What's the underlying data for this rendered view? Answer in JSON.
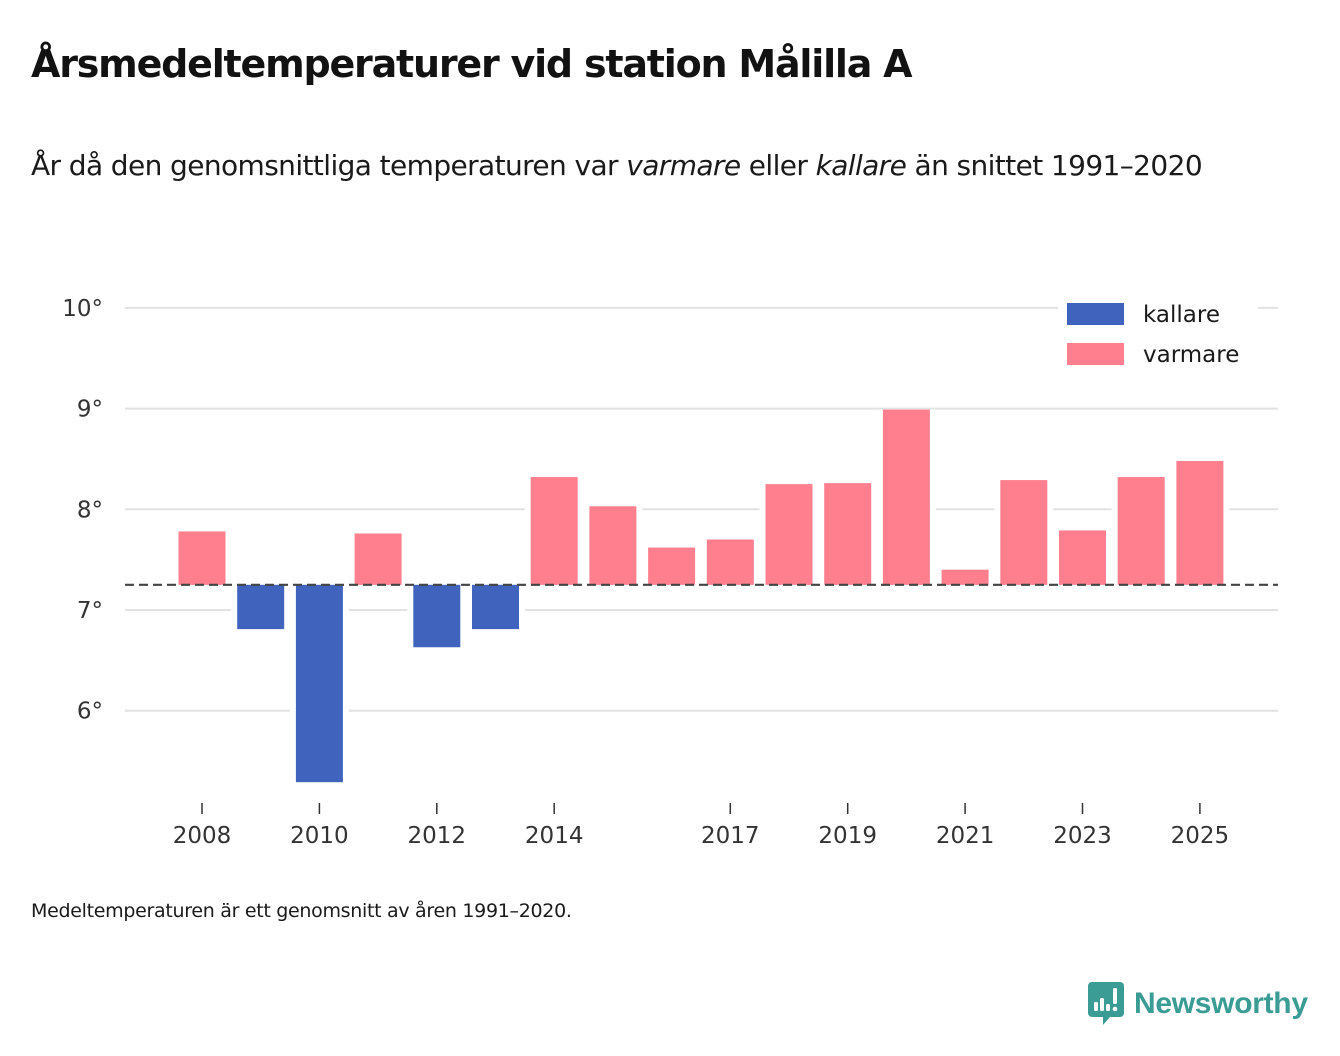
{
  "header": {
    "title": "Årsmedeltemperaturer vid station Målilla A",
    "subtitle_parts": {
      "p1": "År då den genomsnittliga temperaturen var ",
      "em1": "varmare",
      "p2": " eller ",
      "em2": "kallare",
      "p3": " än snittet 1991–2020"
    }
  },
  "footnote": "Medeltemperaturen är ett genomsnitt av åren 1991–2020.",
  "brand": {
    "name": "Newsworthy",
    "icon": "newsworthy-logo-icon",
    "color": "#3a9c94"
  },
  "chart_data": {
    "type": "bar",
    "title": "Årsmedeltemperaturer vid station Målilla A",
    "subtitle": "År då den genomsnittliga temperaturen var varmare eller kallare än snittet 1991–2020",
    "xlabel": "",
    "ylabel": "",
    "baseline": 7.25,
    "baseline_style": "dashed",
    "ylim": [
      5.0,
      10.0
    ],
    "yticks": [
      6,
      7,
      8,
      9,
      10
    ],
    "ytick_labels": [
      "6°",
      "7°",
      "8°",
      "9°",
      "10°"
    ],
    "grid": true,
    "categories": [
      2008,
      2009,
      2010,
      2011,
      2012,
      2013,
      2014,
      2015,
      2016,
      2017,
      2018,
      2019,
      2020,
      2021,
      2022,
      2023,
      2024,
      2025
    ],
    "values": [
      7.78,
      6.81,
      5.29,
      7.76,
      6.63,
      6.81,
      8.32,
      8.03,
      7.62,
      7.7,
      8.25,
      8.26,
      8.99,
      7.4,
      8.29,
      7.79,
      8.32,
      8.48
    ],
    "xticks": [
      2008,
      2010,
      2012,
      2014,
      2017,
      2019,
      2021,
      2023,
      2025
    ],
    "xtick_labels": [
      "2008",
      "2010",
      "2012",
      "2014",
      "2017",
      "2019",
      "2021",
      "2023",
      "2025"
    ],
    "series_colors": {
      "kallare": "#4063bd",
      "varmare": "#ff7f8e"
    },
    "legend": {
      "position": "top-right",
      "entries": [
        {
          "label": "kallare",
          "color": "#4063bd"
        },
        {
          "label": "varmare",
          "color": "#ff7f8e"
        }
      ]
    }
  }
}
